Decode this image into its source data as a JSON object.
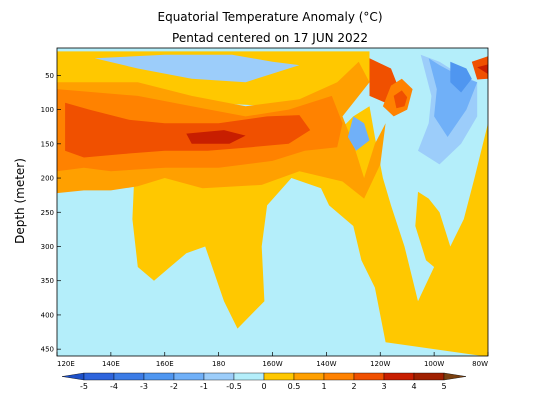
{
  "chart_data": {
    "type": "heatmap",
    "title": "Equatorial Temperature Anomaly (°C)",
    "subtitle": "Pentad centered on 17 JUN 2022",
    "ylabel": "Depth (meter)",
    "xlabel": "",
    "x_ticks": [
      "120E",
      "140E",
      "160E",
      "180",
      "160W",
      "140W",
      "120W",
      "100W",
      "80W"
    ],
    "x_range_deg_east": [
      120,
      280
    ],
    "y_ticks": [
      50,
      100,
      150,
      200,
      250,
      300,
      350,
      400,
      450
    ],
    "y_range_m": [
      10,
      460
    ],
    "colorbar_levels": [
      -5,
      -4,
      -3,
      -2,
      -1,
      -0.5,
      0,
      0.5,
      1,
      2,
      3,
      4,
      5
    ],
    "colorbar_labels": [
      "-5",
      "-4",
      "-3",
      "-2",
      "-1",
      "-0.5",
      "0",
      "0.5",
      "1",
      "2",
      "3",
      "4",
      "5"
    ],
    "colors": {
      "lt_neg5": "#1e50c8",
      "neg5_neg4": "#2e64dc",
      "neg4_neg3": "#3c7ce6",
      "neg3_neg2": "#4f96f0",
      "neg2_neg1": "#70b0f8",
      "neg1_neg05": "#9ccdfa",
      "neg05_0": "#b4eefa",
      "0_05": "#ffc800",
      "05_1": "#ffa000",
      "1_2": "#ff8200",
      "2_3": "#f05000",
      "3_4": "#c81e00",
      "4_5": "#a02000",
      "gt_5": "#7a4010"
    },
    "regions": [
      {
        "level": "0 to 0.5",
        "poly": [
          [
            120,
            15
          ],
          [
            236,
            15
          ],
          [
            236,
            60
          ],
          [
            200,
            95
          ],
          [
            150,
            85
          ],
          [
            130,
            80
          ],
          [
            120,
            80
          ]
        ]
      },
      {
        "level": "0 to 0.5",
        "poly": [
          [
            120,
            120
          ],
          [
            149,
            170
          ],
          [
            148,
            260
          ],
          [
            150,
            330
          ],
          [
            156,
            350
          ],
          [
            162,
            330
          ],
          [
            168,
            310
          ],
          [
            175,
            300
          ],
          [
            182,
            380
          ],
          [
            187,
            420
          ],
          [
            197,
            380
          ],
          [
            196,
            300
          ],
          [
            198,
            240
          ],
          [
            207,
            200
          ],
          [
            218,
            215
          ],
          [
            221,
            240
          ],
          [
            230,
            270
          ],
          [
            233,
            320
          ],
          [
            238,
            360
          ],
          [
            242,
            440
          ],
          [
            278,
            460
          ],
          [
            280,
            460
          ],
          [
            280,
            120
          ],
          [
            275,
            200
          ],
          [
            271,
            260
          ],
          [
            266,
            300
          ],
          [
            262,
            250
          ],
          [
            258,
            230
          ],
          [
            254,
            220
          ],
          [
            253,
            270
          ],
          [
            257,
            320
          ],
          [
            260,
            330
          ],
          [
            254,
            380
          ],
          [
            249,
            300
          ],
          [
            244,
            240
          ],
          [
            241,
            200
          ],
          [
            238,
            140
          ],
          [
            236,
            95
          ],
          [
            230,
            110
          ],
          [
            225,
            130
          ],
          [
            220,
            105
          ],
          [
            212,
            95
          ],
          [
            200,
            120
          ],
          [
            160,
            90
          ],
          [
            130,
            110
          ],
          [
            120,
            115
          ]
        ]
      },
      {
        "level": "0.5 to 1",
        "poly": [
          [
            120,
            60
          ],
          [
            150,
            60
          ],
          [
            170,
            80
          ],
          [
            190,
            95
          ],
          [
            210,
            85
          ],
          [
            224,
            60
          ],
          [
            232,
            30
          ],
          [
            236,
            60
          ],
          [
            226,
            110
          ],
          [
            230,
            150
          ],
          [
            234,
            200
          ],
          [
            238,
            150
          ],
          [
            242,
            120
          ],
          [
            240,
            180
          ],
          [
            234,
            230
          ],
          [
            226,
            205
          ],
          [
            210,
            190
          ],
          [
            196,
            210
          ],
          [
            174,
            215
          ],
          [
            160,
            200
          ],
          [
            150,
            212
          ],
          [
            140,
            218
          ],
          [
            130,
            218
          ],
          [
            120,
            222
          ]
        ]
      },
      {
        "level": "1 to 2",
        "poly": [
          [
            120,
            70
          ],
          [
            150,
            80
          ],
          [
            170,
            95
          ],
          [
            190,
            110
          ],
          [
            206,
            100
          ],
          [
            222,
            80
          ],
          [
            226,
            120
          ],
          [
            224,
            155
          ],
          [
            212,
            160
          ],
          [
            200,
            175
          ],
          [
            180,
            185
          ],
          [
            160,
            185
          ],
          [
            140,
            190
          ],
          [
            130,
            185
          ],
          [
            120,
            190
          ]
        ]
      },
      {
        "level": "2 to 3",
        "poly": [
          [
            123,
            90
          ],
          [
            132,
            100
          ],
          [
            147,
            115
          ],
          [
            160,
            120
          ],
          [
            180,
            120
          ],
          [
            198,
            110
          ],
          [
            210,
            108
          ],
          [
            214,
            130
          ],
          [
            206,
            150
          ],
          [
            192,
            155
          ],
          [
            176,
            160
          ],
          [
            160,
            160
          ],
          [
            144,
            165
          ],
          [
            130,
            170
          ],
          [
            123,
            160
          ]
        ]
      },
      {
        "level": "3 to 4",
        "poly": [
          [
            168,
            135
          ],
          [
            182,
            130
          ],
          [
            190,
            138
          ],
          [
            184,
            150
          ],
          [
            170,
            150
          ]
        ]
      },
      {
        "level": "2 to 3",
        "poly": [
          [
            236,
            25
          ],
          [
            244,
            40
          ],
          [
            246,
            60
          ],
          [
            242,
            90
          ],
          [
            236,
            80
          ]
        ]
      },
      {
        "level": "1 to 2",
        "poly": [
          [
            244,
            65
          ],
          [
            248,
            55
          ],
          [
            252,
            70
          ],
          [
            250,
            100
          ],
          [
            245,
            110
          ],
          [
            241,
            95
          ]
        ]
      },
      {
        "level": "2 to 3",
        "poly": [
          [
            245,
            80
          ],
          [
            248,
            72
          ],
          [
            250,
            82
          ],
          [
            249,
            95
          ],
          [
            246,
            98
          ]
        ]
      },
      {
        "level": "-1 to -0.5",
        "poly": [
          [
            134,
            25
          ],
          [
            160,
            20
          ],
          [
            185,
            20
          ],
          [
            200,
            30
          ],
          [
            210,
            35
          ],
          [
            190,
            60
          ],
          [
            170,
            55
          ],
          [
            150,
            40
          ]
        ]
      },
      {
        "level": "-1 to -0.5",
        "poly": [
          [
            255,
            20
          ],
          [
            262,
            30
          ],
          [
            268,
            45
          ],
          [
            276,
            60
          ],
          [
            276,
            110
          ],
          [
            270,
            150
          ],
          [
            262,
            180
          ],
          [
            254,
            160
          ],
          [
            258,
            120
          ],
          [
            259,
            80
          ]
        ]
      },
      {
        "level": "-2 to -1",
        "poly": [
          [
            258,
            25
          ],
          [
            262,
            35
          ],
          [
            270,
            52
          ],
          [
            276,
            60
          ],
          [
            272,
            100
          ],
          [
            265,
            140
          ],
          [
            260,
            110
          ],
          [
            261,
            70
          ]
        ]
      },
      {
        "level": "-3 to -2",
        "poly": [
          [
            266,
            30
          ],
          [
            272,
            40
          ],
          [
            274,
            55
          ],
          [
            270,
            75
          ],
          [
            266,
            60
          ]
        ]
      },
      {
        "level": "-2 to -1",
        "poly": [
          [
            230,
            110
          ],
          [
            234,
            120
          ],
          [
            236,
            145
          ],
          [
            231,
            160
          ],
          [
            228,
            140
          ]
        ]
      },
      {
        "level": "-0.5 to 0",
        "poly": [
          [
            123,
            420
          ],
          [
            130,
            400
          ],
          [
            133,
            360
          ],
          [
            137,
            290
          ],
          [
            140,
            250
          ],
          [
            143,
            280
          ],
          [
            146,
            340
          ],
          [
            148,
            460
          ],
          [
            120,
            460
          ]
        ]
      },
      {
        "level": "2 to 3",
        "poly": [
          [
            274,
            30
          ],
          [
            280,
            22
          ],
          [
            280,
            55
          ],
          [
            276,
            56
          ]
        ]
      },
      {
        "level": "3 to 4",
        "poly": [
          [
            276,
            38
          ],
          [
            280,
            34
          ],
          [
            280,
            48
          ]
        ]
      }
    ]
  }
}
